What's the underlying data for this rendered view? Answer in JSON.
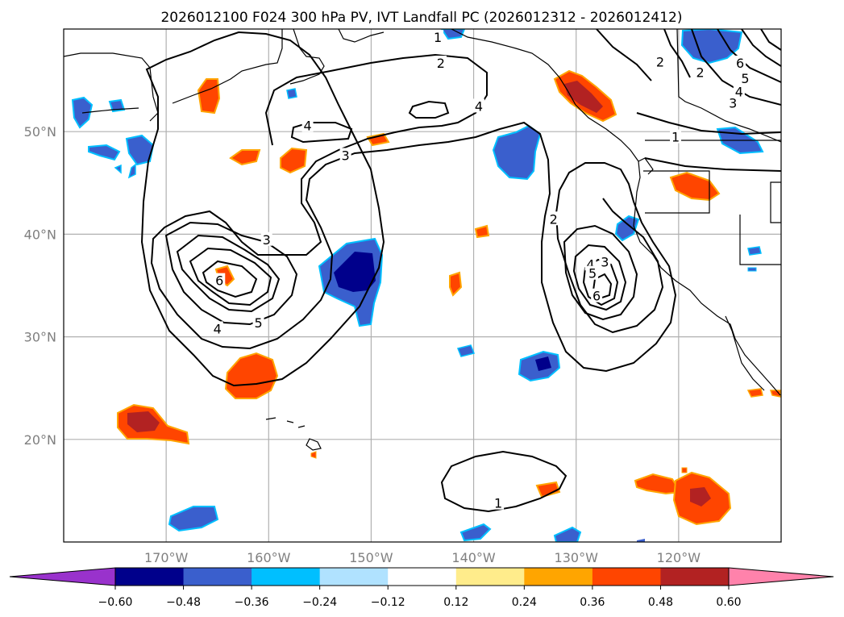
{
  "title": "2026012100 F024 300 hPa PV, IVT Landfall PC (2026012312 - 2026012412)",
  "map": {
    "lon_ticks": [
      "170°W",
      "160°W",
      "150°W",
      "140°W",
      "130°W",
      "120°W"
    ],
    "lat_ticks": [
      "50°N",
      "40°N",
      "30°N",
      "20°N"
    ],
    "gridlines": true
  },
  "chart_data": {
    "type": "contour-map",
    "filled_field": "300 hPa PV",
    "contour_field": "IVT Landfall PC",
    "contour_labels": [
      {
        "text": "1",
        "lon": -143.5,
        "lat": 59.2
      },
      {
        "text": "2",
        "lon": -143.2,
        "lat": 56.7
      },
      {
        "text": "4",
        "lon": -139.5,
        "lat": 52.5
      },
      {
        "text": "4",
        "lon": -156.2,
        "lat": 50.6
      },
      {
        "text": "3",
        "lon": -152.5,
        "lat": 47.7
      },
      {
        "text": "3",
        "lon": -160.2,
        "lat": 39.5
      },
      {
        "text": "6",
        "lon": -164.8,
        "lat": 35.5
      },
      {
        "text": "5",
        "lon": -161.0,
        "lat": 31.4
      },
      {
        "text": "4",
        "lon": -165.0,
        "lat": 30.8
      },
      {
        "text": "2",
        "lon": -132.2,
        "lat": 41.5
      },
      {
        "text": "4",
        "lon": -128.6,
        "lat": 37.1
      },
      {
        "text": "3",
        "lon": -127.2,
        "lat": 37.3
      },
      {
        "text": "5",
        "lon": -128.4,
        "lat": 36.2
      },
      {
        "text": "6",
        "lon": -128.0,
        "lat": 34.0
      },
      {
        "text": "1",
        "lon": -137.6,
        "lat": 13.8
      },
      {
        "text": "1",
        "lon": -120.3,
        "lat": 49.5
      },
      {
        "text": "2",
        "lon": -121.8,
        "lat": 56.8
      },
      {
        "text": "2",
        "lon": -117.9,
        "lat": 55.8
      },
      {
        "text": "6",
        "lon": -114.0,
        "lat": 56.7
      },
      {
        "text": "5",
        "lon": -113.5,
        "lat": 55.2
      },
      {
        "text": "4",
        "lon": -114.1,
        "lat": 53.9
      },
      {
        "text": "3",
        "lon": -114.7,
        "lat": 52.8
      }
    ],
    "colorbar": {
      "ticks": [
        "−0.60",
        "−0.48",
        "−0.36",
        "−0.24",
        "−0.12",
        "0.12",
        "0.24",
        "0.36",
        "0.48",
        "0.60"
      ],
      "colors": [
        "#9932cc",
        "#00008b",
        "#3a5fcd",
        "#00bfff",
        "#b0e2ff",
        "#ffffff",
        "#ffec8b",
        "#ffa500",
        "#ff4500",
        "#b22222",
        "#ff82ab"
      ],
      "extend": "both"
    }
  }
}
